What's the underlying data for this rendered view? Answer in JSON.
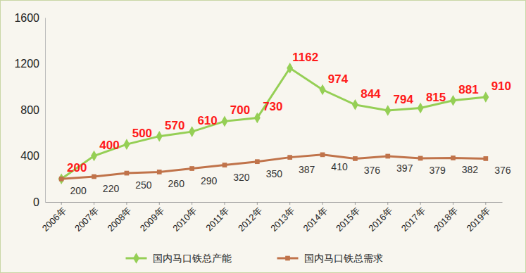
{
  "chart_data": {
    "type": "line",
    "categories": [
      "2006年",
      "2007年",
      "2008年",
      "2009年",
      "2010年",
      "2011年",
      "2012年",
      "2013年",
      "2014年",
      "2015年",
      "2016年",
      "2017年",
      "2018年",
      "2019年"
    ],
    "series": [
      {
        "name": "国内马口铁总产能",
        "color": "#95cf55",
        "marker": "diamond",
        "values": [
          200,
          400,
          500,
          570,
          610,
          700,
          730,
          1162,
          974,
          844,
          794,
          815,
          881,
          910
        ]
      },
      {
        "name": "国内马口铁总需求",
        "color": "#c0734a",
        "marker": "square",
        "values": [
          200,
          220,
          250,
          260,
          290,
          320,
          350,
          387,
          410,
          376,
          397,
          379,
          382,
          376
        ]
      }
    ],
    "ylim": [
      0,
      1600
    ],
    "yticks": [
      0,
      400,
      800,
      1200,
      1600
    ],
    "grid": false,
    "legend": "bottom",
    "data_labels": true
  }
}
